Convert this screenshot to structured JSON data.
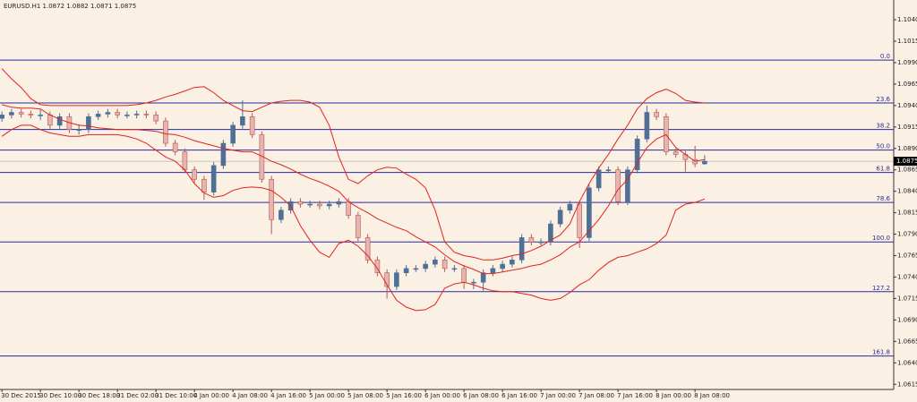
{
  "chart_data": {
    "type": "candlestick",
    "title": "EURUSD.H1  1.0872 1.0882 1.0871 1.0875",
    "xlim": [
      -0.2,
      92.64
    ],
    "ylim": [
      1.0609,
      1.1063
    ],
    "yticks": [
      {
        "value": 1.104,
        "label": "1.1040"
      },
      1.1015,
      {
        "value": 1.099,
        "label": "1.0990"
      },
      1.0965,
      {
        "value": 1.094,
        "label": "1.0940"
      },
      1.0915,
      {
        "value": 1.089,
        "label": "1.0890"
      },
      1.0865,
      {
        "value": 1.084,
        "label": "1.0840"
      },
      1.0815,
      {
        "value": 1.079,
        "label": "1.0790"
      },
      1.0765,
      {
        "value": 1.074,
        "label": "1.0740"
      },
      1.0715,
      {
        "value": 1.069,
        "label": "1.0690"
      },
      1.0665,
      {
        "value": 1.064,
        "label": "1.0640"
      },
      1.0615
    ],
    "xticks": [
      {
        "value": 0,
        "label": "30 Dec 2015"
      },
      {
        "value": 4,
        "label": "30 Dec 10:00"
      },
      {
        "value": 8,
        "label": "30 Dec 18:00"
      },
      {
        "value": 12,
        "label": "31 Dec 02:00"
      },
      {
        "value": 16,
        "label": "31 Dec 10:00"
      },
      {
        "value": 20,
        "label": "4 Jan 00:00"
      },
      {
        "value": 24,
        "label": "4 Jan 08:00"
      },
      {
        "value": 28,
        "label": "4 Jan 16:00"
      },
      {
        "value": 32,
        "label": "5 Jan 00:00"
      },
      {
        "value": 36,
        "label": "5 Jan 08:00"
      },
      {
        "value": 40,
        "label": "5 Jan 16:00"
      },
      {
        "value": 44,
        "label": "6 Jan 00:00"
      },
      {
        "value": 48,
        "label": "6 Jan 08:00"
      },
      {
        "value": 52,
        "label": "6 Jan 16:00"
      },
      {
        "value": 56,
        "label": "7 Jan 00:00"
      },
      {
        "value": 60,
        "label": "7 Jan 08:00"
      },
      {
        "value": 64,
        "label": "7 Jan 16:00"
      },
      {
        "value": 68,
        "label": "8 Jan 00:00"
      },
      {
        "value": 72,
        "label": "8 Jan 08:00"
      }
    ],
    "open": [
      1.0925,
      1.0929,
      1.0932,
      1.093,
      1.0929,
      1.0929,
      1.0917,
      1.0927,
      1.0912,
      1.0912,
      1.0927,
      1.093,
      1.0932,
      1.0929,
      1.0929,
      1.093,
      1.0929,
      1.0922,
      1.0896,
      1.0886,
      1.0865,
      1.0854,
      1.0839,
      1.087,
      1.0896,
      1.0917,
      1.0927,
      1.0906,
      1.0854,
      1.0807,
      1.0818,
      1.0828,
      1.0825,
      1.0825,
      1.0823,
      1.0825,
      1.0828,
      1.0812,
      1.0786,
      1.076,
      1.0745,
      1.0729,
      1.0745,
      1.075,
      1.075,
      1.0755,
      1.076,
      1.075,
      1.075,
      1.0734,
      1.0734,
      1.0745,
      1.075,
      1.0755,
      1.076,
      1.0786,
      1.0781,
      1.0781,
      1.0802,
      1.0818,
      1.0825,
      1.0786,
      1.0844,
      1.0865,
      1.0865,
      1.0828,
      1.0865,
      1.0901,
      1.0932,
      1.0927,
      1.0886,
      1.0883,
      1.0877,
      1.0872
    ],
    "high": [
      1.0933,
      1.0936,
      1.0936,
      1.0934,
      1.0935,
      1.0933,
      1.0931,
      1.0931,
      1.0918,
      1.0931,
      1.0934,
      1.0936,
      1.0936,
      1.0933,
      1.0934,
      1.0934,
      1.0933,
      1.0926,
      1.09,
      1.089,
      1.0869,
      1.0858,
      1.0874,
      1.09,
      1.0921,
      1.0946,
      1.0931,
      1.091,
      1.0858,
      1.0822,
      1.0832,
      1.0832,
      1.0829,
      1.0829,
      1.0829,
      1.0832,
      1.0832,
      1.0816,
      1.079,
      1.0764,
      1.0749,
      1.0749,
      1.0754,
      1.0754,
      1.0759,
      1.0764,
      1.0764,
      1.0754,
      1.0754,
      1.0738,
      1.0749,
      1.0754,
      1.0759,
      1.0764,
      1.079,
      1.079,
      1.0785,
      1.0806,
      1.0822,
      1.0829,
      1.0829,
      1.0848,
      1.0869,
      1.0869,
      1.0869,
      1.0869,
      1.0905,
      1.094,
      1.0936,
      1.0931,
      1.089,
      1.0887,
      1.0893,
      1.0882
    ],
    "low": [
      1.0921,
      1.0925,
      1.0926,
      1.0925,
      1.0923,
      1.0913,
      1.0913,
      1.0908,
      1.0906,
      1.0908,
      1.0923,
      1.0926,
      1.0925,
      1.0925,
      1.0925,
      1.0925,
      1.0918,
      1.0892,
      1.0882,
      1.0861,
      1.085,
      1.083,
      1.0835,
      1.0866,
      1.0892,
      1.0913,
      1.0902,
      1.085,
      1.079,
      1.0803,
      1.0814,
      1.0821,
      1.0821,
      1.0819,
      1.0819,
      1.0821,
      1.0808,
      1.0782,
      1.0756,
      1.0741,
      1.0715,
      1.0725,
      1.0741,
      1.0746,
      1.0746,
      1.0751,
      1.0746,
      1.0746,
      1.0726,
      1.0726,
      1.0724,
      1.0741,
      1.0746,
      1.0751,
      1.0756,
      1.0777,
      1.0777,
      1.0777,
      1.0798,
      1.0814,
      1.0774,
      1.0782,
      1.084,
      1.0861,
      1.0824,
      1.0824,
      1.0861,
      1.0897,
      1.0923,
      1.0882,
      1.0879,
      1.0863,
      1.0868,
      1.0871
    ],
    "close": [
      1.0929,
      1.0932,
      1.093,
      1.0929,
      1.0929,
      1.0917,
      1.0927,
      1.0912,
      1.0912,
      1.0927,
      1.093,
      1.0932,
      1.0929,
      1.0929,
      1.093,
      1.0929,
      1.0922,
      1.0896,
      1.0886,
      1.0865,
      1.0854,
      1.0839,
      1.087,
      1.0896,
      1.0917,
      1.0927,
      1.0906,
      1.0854,
      1.0807,
      1.0818,
      1.0828,
      1.0825,
      1.0825,
      1.0823,
      1.0825,
      1.0828,
      1.0812,
      1.0786,
      1.076,
      1.0745,
      1.0729,
      1.0745,
      1.075,
      1.075,
      1.0755,
      1.076,
      1.075,
      1.075,
      1.0734,
      1.0734,
      1.0745,
      1.075,
      1.0755,
      1.076,
      1.0786,
      1.0781,
      1.0781,
      1.0802,
      1.0818,
      1.0825,
      1.0786,
      1.0844,
      1.0865,
      1.0865,
      1.0828,
      1.0865,
      1.0901,
      1.0932,
      1.0927,
      1.0886,
      1.0883,
      1.0877,
      1.0872,
      1.0875
    ],
    "up_color": "#4f6f96",
    "down_color": "#e8b4b0",
    "bands": [
      {
        "color": "#e0241c",
        "values": [
          1.0983,
          1.0971,
          1.0961,
          1.0948,
          1.0941,
          1.094,
          1.094,
          1.094,
          1.094,
          1.094,
          1.094,
          1.094,
          1.094,
          1.094,
          1.0941,
          1.0943,
          1.0946,
          1.095,
          1.0953,
          1.0957,
          1.0961,
          1.0962,
          1.0955,
          1.0946,
          1.094,
          1.0934,
          1.0933,
          1.0938,
          1.0943,
          1.0945,
          1.0946,
          1.0946,
          1.0944,
          1.0938,
          1.0917,
          1.088,
          1.0854,
          1.0849,
          1.0858,
          1.0865,
          1.0868,
          1.0867,
          1.086,
          1.0854,
          1.0844,
          1.0818,
          1.0781,
          1.0769,
          1.0765,
          1.0763,
          1.076,
          1.076,
          1.0762,
          1.0765,
          1.0767,
          1.0771,
          1.0776,
          1.0783,
          1.0789,
          1.0802,
          1.0828,
          1.0849,
          1.0867,
          1.0883,
          1.0901,
          1.0917,
          1.0936,
          1.0948,
          1.0955,
          1.0959,
          1.0954,
          1.0946,
          1.0944,
          1.0943
        ]
      },
      {
        "color": "#e0241c",
        "values": [
          1.0941,
          1.0938,
          1.0937,
          1.0937,
          1.0936,
          1.0929,
          1.0924,
          1.092,
          1.0917,
          1.0916,
          1.0914,
          1.0913,
          1.0912,
          1.0912,
          1.0912,
          1.0911,
          1.091,
          1.0907,
          1.0906,
          1.0903,
          1.0899,
          1.0896,
          1.0893,
          1.089,
          1.0888,
          1.0886,
          1.0886,
          1.0881,
          1.0875,
          1.0871,
          1.0866,
          1.086,
          1.0855,
          1.0851,
          1.0846,
          1.084,
          1.0828,
          1.0821,
          1.0815,
          1.0808,
          1.0803,
          1.0798,
          1.0794,
          1.0787,
          1.0781,
          1.0775,
          1.0766,
          1.0758,
          1.0753,
          1.0749,
          1.0744,
          1.0744,
          1.0746,
          1.0748,
          1.075,
          1.0753,
          1.0755,
          1.076,
          1.0766,
          1.0775,
          1.0781,
          1.0794,
          1.0807,
          1.0823,
          1.0842,
          1.0854,
          1.0873,
          1.0891,
          1.0901,
          1.0906,
          1.0891,
          1.0883,
          1.0875,
          1.0877
        ]
      },
      {
        "color": "#e0241c",
        "values": [
          1.0904,
          1.0912,
          1.0917,
          1.0917,
          1.0912,
          1.0908,
          1.0906,
          1.0904,
          1.0904,
          1.0906,
          1.0906,
          1.0906,
          1.0906,
          1.0904,
          1.0901,
          1.0896,
          1.0888,
          1.088,
          1.0875,
          1.0865,
          1.0849,
          1.0838,
          1.0833,
          1.0835,
          1.0841,
          1.0844,
          1.0845,
          1.0844,
          1.0841,
          1.0833,
          1.0823,
          1.08,
          1.0783,
          1.0769,
          1.0763,
          1.0779,
          1.0783,
          1.0776,
          1.0765,
          1.075,
          1.0731,
          1.0713,
          1.0705,
          1.0701,
          1.0702,
          1.0708,
          1.0727,
          1.0732,
          1.0734,
          1.0731,
          1.0727,
          1.0724,
          1.0723,
          1.0723,
          1.0721,
          1.0719,
          1.0715,
          1.0713,
          1.0715,
          1.0722,
          1.0731,
          1.0737,
          1.0748,
          1.0757,
          1.0763,
          1.0765,
          1.0769,
          1.0773,
          1.0779,
          1.0789,
          1.0818,
          1.0825,
          1.0827,
          1.0831
        ]
      }
    ],
    "fib_color": "#2a2a9c",
    "fib_levels": [
      {
        "value": 1.0993,
        "label": "0.0"
      },
      {
        "value": 1.0943,
        "label": "23.6"
      },
      {
        "value": 1.0912,
        "label": "38.2"
      },
      {
        "value": 1.0888,
        "label": "50.0"
      },
      {
        "value": 1.0862,
        "label": "61.8"
      },
      {
        "value": 1.0827,
        "label": "78.6"
      },
      {
        "value": 1.0781,
        "label": "100.0"
      },
      {
        "value": 1.0723,
        "label": "127.2"
      },
      {
        "value": 1.0648,
        "label": "161.8"
      }
    ],
    "last_price": 1.0875
  }
}
